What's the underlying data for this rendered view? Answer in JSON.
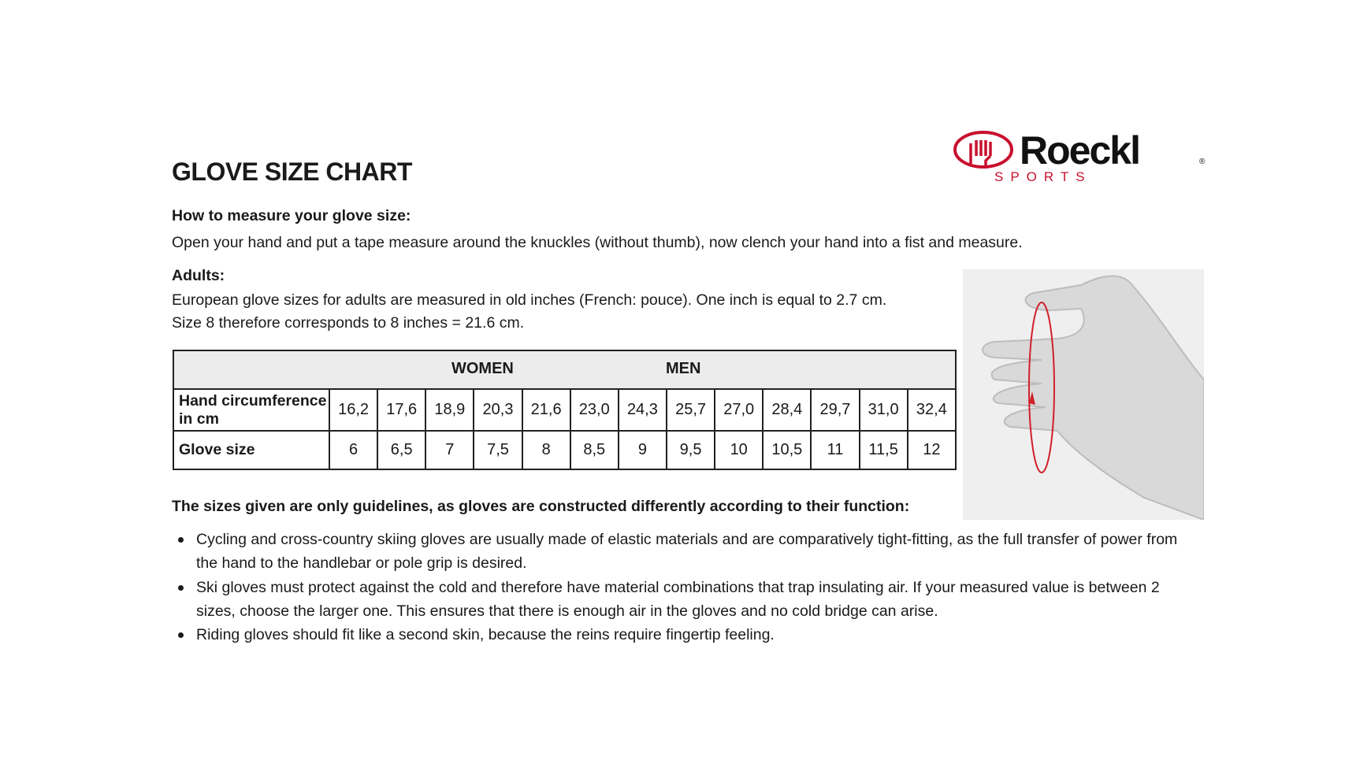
{
  "title": "GLOVE SIZE CHART",
  "logo": {
    "brand": "Roeckl",
    "sub": "SPORTS",
    "registered": "®",
    "color": "#c8102e"
  },
  "measure": {
    "heading": "How to measure your glove size:",
    "text": "Open your hand and put a tape measure around the knuckles (without thumb), now clench your hand into a fist and measure."
  },
  "adults": {
    "heading": "Adults:",
    "line1": "European glove sizes for adults are measured in old inches (French: pouce). One inch is equal to 2.7 cm.",
    "line2": "Size 8 therefore corresponds to 8 inches = 21.6 cm."
  },
  "table": {
    "group_women": "WOMEN",
    "group_men": "MEN",
    "row1_label": "Hand circumference in cm",
    "row1": [
      "16,2",
      "17,6",
      "18,9",
      "20,3",
      "21,6",
      "23,0",
      "24,3",
      "25,7",
      "27,0",
      "28,4",
      "29,7",
      "31,0",
      "32,4"
    ],
    "row2_label": "Glove size",
    "row2": [
      "6",
      "6,5",
      "7",
      "7,5",
      "8",
      "8,5",
      "9",
      "9,5",
      "10",
      "10,5",
      "11",
      "11,5",
      "12"
    ]
  },
  "guidelines": {
    "heading": "The sizes given are only guidelines, as gloves are constructed differently according to their function:",
    "items": [
      "Cycling and cross-country skiing gloves are usually made of elastic materials and are comparatively tight-fitting, as the full transfer of power from the hand to the handlebar or pole grip is desired.",
      "Ski gloves must protect against the cold and therefore have material combinations that trap insulating air. If your measured value is between 2 sizes, choose the larger one. This ensures that there is enough air in the gloves and no cold bridge can arise.",
      "Riding gloves should fit like a second skin, because the reins require fingertip feeling."
    ]
  }
}
